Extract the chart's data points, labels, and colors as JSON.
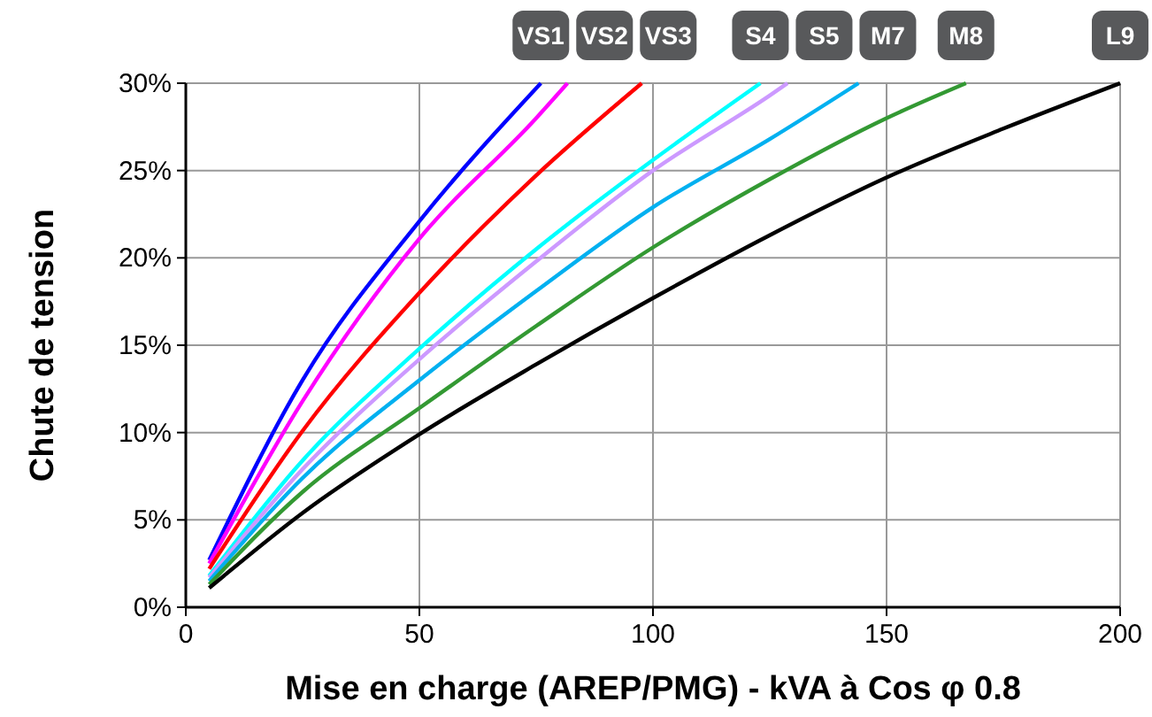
{
  "chart_data": {
    "type": "line",
    "xlabel": "Mise en charge (AREP/PMG) - kVA à Cos φ 0.8",
    "ylabel": "Chute de tension",
    "xlim": [
      0,
      200
    ],
    "xticks": [
      0,
      50,
      100,
      150,
      200
    ],
    "ylim": [
      0,
      30
    ],
    "yticks": [
      {
        "value": 0,
        "label": "0%"
      },
      {
        "value": 5,
        "label": "5%"
      },
      {
        "value": 10,
        "label": "10%"
      },
      {
        "value": 15,
        "label": "15%"
      },
      {
        "value": 20,
        "label": "20%"
      },
      {
        "value": 25,
        "label": "25%"
      },
      {
        "value": 30,
        "label": "30%"
      }
    ],
    "grid": true,
    "marker": "none",
    "line_style": "solid",
    "series": [
      {
        "name": "VS1",
        "color": "#0000ff",
        "x": [
          5,
          25,
          50,
          76
        ],
        "values": [
          2.7,
          13.0,
          22.1,
          30
        ]
      },
      {
        "name": "VS2",
        "color": "#ff00ff",
        "x": [
          5,
          25,
          50,
          75,
          81.7
        ],
        "values": [
          2.5,
          11.8,
          21.1,
          28,
          30
        ]
      },
      {
        "name": "VS3",
        "color": "#ff0000",
        "x": [
          5,
          25,
          50,
          74.5,
          97.6
        ],
        "values": [
          2.2,
          10.1,
          18.0,
          24.6,
          30
        ]
      },
      {
        "name": "S4",
        "color": "#00ffff",
        "x": [
          5,
          25,
          50,
          75,
          100,
          123
        ],
        "values": [
          1.8,
          8.4,
          14.8,
          20.5,
          25.6,
          30
        ]
      },
      {
        "name": "S5",
        "color": "#cc99ff",
        "x": [
          5,
          25,
          50,
          75,
          100,
          125,
          128.8
        ],
        "values": [
          1.7,
          7.9,
          14.2,
          19.8,
          25.0,
          29.3,
          30
        ]
      },
      {
        "name": "M7",
        "color": "#00b0f0",
        "x": [
          5,
          25,
          50,
          75,
          100,
          125,
          144
        ],
        "values": [
          1.5,
          7.4,
          13.0,
          18.1,
          22.9,
          26.8,
          30
        ]
      },
      {
        "name": "M8",
        "color": "#339933",
        "x": [
          5,
          25,
          50,
          75,
          100,
          125,
          150,
          167
        ],
        "values": [
          1.3,
          6.6,
          11.4,
          16.1,
          20.6,
          24.5,
          28.0,
          30
        ]
      },
      {
        "name": "L9",
        "color": "#000000",
        "x": [
          5,
          25,
          50,
          75,
          100,
          125,
          150,
          175,
          200
        ],
        "values": [
          1.1,
          5.4,
          9.9,
          13.9,
          17.7,
          21.3,
          24.6,
          27.4,
          30
        ]
      }
    ]
  }
}
